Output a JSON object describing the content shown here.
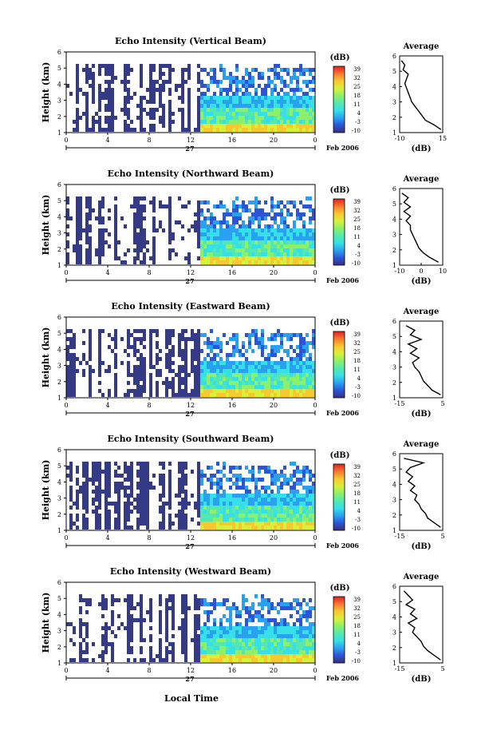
{
  "figure": {
    "xlabel_bottom": "Local Time",
    "date_label": "Feb 2006",
    "day_label": "27",
    "colorbar_unit": "(dB)",
    "colorbar_ticks": [
      "39",
      "32",
      "25",
      "18",
      "11",
      "4",
      "-3",
      "-10"
    ],
    "colorbar_colors": [
      "#3a2f7a",
      "#2b55d6",
      "#2aa0f0",
      "#35e0e8",
      "#54e8b0",
      "#8cf06a",
      "#d8f03a",
      "#f8c830",
      "#f87830",
      "#e02020"
    ]
  },
  "chart_data": [
    {
      "type": "heatmap",
      "title": "Echo Intensity (Vertical Beam)",
      "ylabel": "Height (km)",
      "ylim": [
        1,
        6
      ],
      "yticks": [
        "1",
        "2",
        "3",
        "4",
        "5",
        "6"
      ],
      "xlim": [
        0,
        24
      ],
      "xticks": [
        "0",
        "4",
        "8",
        "12",
        "16",
        "20",
        "0"
      ],
      "profile": {
        "title": "Average",
        "xlabel": "(dB)",
        "xlim": [
          -10,
          15
        ],
        "xticks": [
          "-10",
          "15"
        ],
        "ylim": [
          1,
          6
        ],
        "yticks": [
          "1",
          "2",
          "3",
          "4",
          "5",
          "6"
        ],
        "height_km": [
          1.2,
          1.5,
          1.8,
          2.1,
          2.4,
          2.7,
          3.0,
          3.3,
          3.6,
          3.9,
          4.2,
          4.5,
          4.8,
          5.1,
          5.4,
          5.7
        ],
        "db": [
          14,
          10,
          5,
          3,
          1,
          -1,
          -3,
          -4,
          -5,
          -6,
          -7,
          -6,
          -5,
          -8,
          -7,
          -9
        ]
      }
    },
    {
      "type": "heatmap",
      "title": "Echo Intensity (Northward Beam)",
      "ylabel": "Height (km)",
      "ylim": [
        1,
        6
      ],
      "yticks": [
        "1",
        "2",
        "3",
        "4",
        "5",
        "6"
      ],
      "xlim": [
        0,
        24
      ],
      "xticks": [
        "0",
        "4",
        "8",
        "12",
        "16",
        "20",
        "0"
      ],
      "profile": {
        "title": "Average",
        "xlabel": "(dB)",
        "xlim": [
          -10,
          10
        ],
        "xticks": [
          "-10",
          "0",
          "10"
        ],
        "ylim": [
          1,
          6
        ],
        "yticks": [
          "1",
          "2",
          "3",
          "4",
          "5",
          "6"
        ],
        "height_km": [
          1.2,
          1.5,
          1.8,
          2.1,
          2.4,
          2.7,
          3.0,
          3.3,
          3.6,
          3.9,
          4.2,
          4.5,
          4.8,
          5.1,
          5.4,
          5.7
        ],
        "db": [
          8,
          4,
          1,
          -1,
          -2,
          -3,
          -4,
          -5,
          -5,
          -7,
          -5,
          -8,
          -5,
          -8,
          -6,
          -9
        ]
      }
    },
    {
      "type": "heatmap",
      "title": "Echo Intensity (Eastward Beam)",
      "ylabel": "Height (km)",
      "ylim": [
        1,
        6
      ],
      "yticks": [
        "1",
        "2",
        "3",
        "4",
        "5",
        "6"
      ],
      "xlim": [
        0,
        24
      ],
      "xticks": [
        "0",
        "4",
        "8",
        "12",
        "16",
        "20",
        "0"
      ],
      "profile": {
        "title": "Average",
        "xlabel": "(dB)",
        "xlim": [
          -15,
          5
        ],
        "xticks": [
          "-15",
          "5"
        ],
        "ylim": [
          1,
          6
        ],
        "yticks": [
          "1",
          "2",
          "3",
          "4",
          "5",
          "6"
        ],
        "height_km": [
          1.2,
          1.5,
          1.8,
          2.1,
          2.4,
          2.7,
          3.0,
          3.3,
          3.6,
          3.9,
          4.2,
          4.5,
          4.8,
          5.1,
          5.4,
          5.7
        ],
        "db": [
          4,
          0,
          -2,
          -4,
          -5,
          -6,
          -8,
          -9,
          -6,
          -10,
          -7,
          -11,
          -5,
          -10,
          -8,
          -12
        ]
      }
    },
    {
      "type": "heatmap",
      "title": "Echo Intensity (Southward Beam)",
      "ylabel": "Height (km)",
      "ylim": [
        1,
        6
      ],
      "yticks": [
        "1",
        "2",
        "3",
        "4",
        "5",
        "6"
      ],
      "xlim": [
        0,
        24
      ],
      "xticks": [
        "0",
        "4",
        "8",
        "12",
        "16",
        "20",
        "0"
      ],
      "profile": {
        "title": "Average",
        "xlabel": "(dB)",
        "xlim": [
          -15,
          5
        ],
        "xticks": [
          "-15",
          "5"
        ],
        "ylim": [
          1,
          6
        ],
        "yticks": [
          "1",
          "2",
          "3",
          "4",
          "5",
          "6"
        ],
        "height_km": [
          1.2,
          1.5,
          1.8,
          2.1,
          2.4,
          2.7,
          3.0,
          3.3,
          3.6,
          3.9,
          4.2,
          4.5,
          4.8,
          5.1,
          5.4,
          5.7
        ],
        "db": [
          4,
          1,
          -2,
          -3,
          -5,
          -6,
          -8,
          -7,
          -10,
          -8,
          -11,
          -9,
          -12,
          -10,
          -4,
          -13
        ]
      }
    },
    {
      "type": "heatmap",
      "title": "Echo Intensity (Westward Beam)",
      "ylabel": "Height (km)",
      "ylim": [
        1,
        6
      ],
      "yticks": [
        "1",
        "2",
        "3",
        "4",
        "5",
        "6"
      ],
      "xlim": [
        0,
        24
      ],
      "xticks": [
        "0",
        "4",
        "8",
        "12",
        "16",
        "20",
        "0"
      ],
      "profile": {
        "title": "Average",
        "xlabel": "(dB)",
        "xlim": [
          -15,
          5
        ],
        "xticks": [
          "-15",
          "5"
        ],
        "ylim": [
          1,
          6
        ],
        "yticks": [
          "1",
          "2",
          "3",
          "4",
          "5",
          "6"
        ],
        "height_km": [
          1.2,
          1.5,
          1.8,
          2.1,
          2.4,
          2.7,
          3.0,
          3.3,
          3.6,
          3.9,
          4.2,
          4.5,
          4.8,
          5.1,
          5.4,
          5.7
        ],
        "db": [
          4,
          1,
          -2,
          -4,
          -5,
          -7,
          -9,
          -8,
          -11,
          -7,
          -10,
          -8,
          -12,
          -9,
          -11,
          -13
        ]
      }
    }
  ]
}
